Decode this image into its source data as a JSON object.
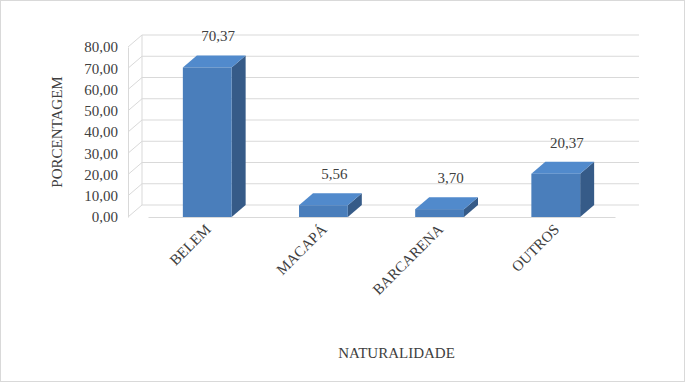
{
  "chart_data": {
    "type": "bar",
    "xlabel": "NATURALIDADE",
    "ylabel": "PORCENTAGEM",
    "categories": [
      "BELEM",
      "MACAPÁ",
      "BARCARENA",
      "OUTROS"
    ],
    "values": [
      70.37,
      5.56,
      3.7,
      20.37
    ],
    "value_labels": [
      "70,37",
      "5,56",
      "3,70",
      "20,37"
    ],
    "color": "#4a7ebb",
    "ylim": [
      0,
      80
    ],
    "yticks": [
      {
        "value": 0,
        "label": "0,00"
      },
      {
        "value": 10,
        "label": "10,00"
      },
      {
        "value": 20,
        "label": "20,00"
      },
      {
        "value": 30,
        "label": "30,00"
      },
      {
        "value": 40,
        "label": "40,00"
      },
      {
        "value": 50,
        "label": "50,00"
      },
      {
        "value": 60,
        "label": "60,00"
      },
      {
        "value": 70,
        "label": "70,00"
      },
      {
        "value": 80,
        "label": "80,00"
      }
    ],
    "grid": true,
    "data_labels": true
  }
}
